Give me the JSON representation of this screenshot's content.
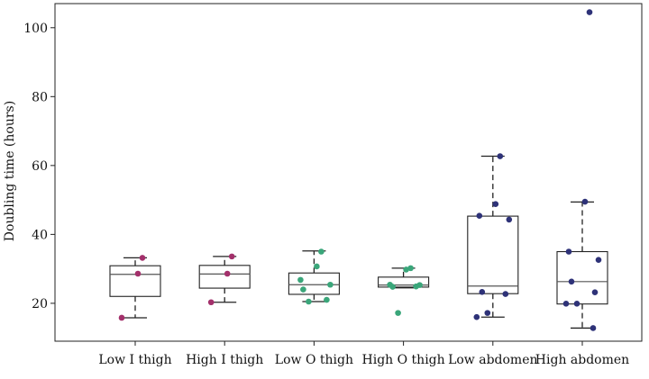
{
  "chart_data": {
    "type": "box",
    "title": "",
    "xlabel": "",
    "ylabel": "Doubling time (hours)",
    "ylim": [
      9,
      107
    ],
    "yticks": [
      20,
      40,
      60,
      80,
      100
    ],
    "grid": false,
    "categories": [
      "Low I thigh",
      "High I thigh",
      "Low O thigh",
      "High O thigh",
      "Low abdomen",
      "High abdomen"
    ],
    "colors": {
      "thigh_i": "#a3306b",
      "thigh_o": "#3aa67a",
      "abdomen": "#2e3278",
      "box_stroke": "#222222",
      "axis": "#222222"
    },
    "boxes": [
      {
        "category": "Low I thigh",
        "whisker_low": 15.8,
        "q1": 22.0,
        "median": 28.4,
        "q3": 30.9,
        "whisker_high": 33.2,
        "color_key": "thigh_i",
        "points": [
          33.2,
          28.6,
          15.8
        ]
      },
      {
        "category": "High I thigh",
        "whisker_low": 20.3,
        "q1": 24.4,
        "median": 28.5,
        "q3": 31.0,
        "whisker_high": 33.6,
        "color_key": "thigh_i",
        "points": [
          33.6,
          28.6,
          20.3
        ]
      },
      {
        "category": "Low O thigh",
        "whisker_low": 20.5,
        "q1": 22.6,
        "median": 25.4,
        "q3": 28.8,
        "whisker_high": 35.2,
        "color_key": "thigh_o",
        "points": [
          35.0,
          30.7,
          26.8,
          25.4,
          24.0,
          21.0,
          20.5
        ]
      },
      {
        "category": "High O thigh",
        "whisker_low": 24.5,
        "q1": 24.7,
        "median": 25.3,
        "q3": 27.6,
        "whisker_high": 30.2,
        "color_key": "thigh_o",
        "points": [
          30.2,
          29.8,
          25.4,
          25.3,
          24.8,
          24.9,
          17.2
        ]
      },
      {
        "category": "Low abdomen",
        "whisker_low": 16.0,
        "q1": 22.8,
        "median": 25.0,
        "q3": 45.3,
        "whisker_high": 62.7,
        "color_key": "abdomen",
        "points": [
          62.7,
          48.8,
          45.4,
          44.3,
          23.3,
          22.7,
          17.2,
          16.0
        ]
      },
      {
        "category": "High abdomen",
        "whisker_low": 12.8,
        "q1": 19.8,
        "median": 26.3,
        "q3": 35.0,
        "whisker_high": 49.4,
        "color_key": "abdomen",
        "points": [
          104.5,
          49.5,
          35.0,
          32.6,
          26.3,
          23.2,
          19.9,
          19.9,
          12.8
        ]
      }
    ]
  }
}
